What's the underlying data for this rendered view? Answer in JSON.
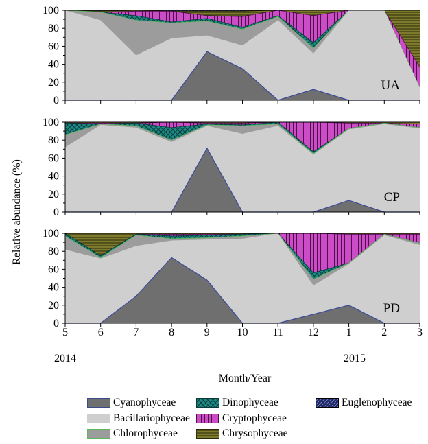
{
  "chart_data": {
    "type": "area",
    "ylabel": "Relative abundance (%)",
    "xlabel": "Month/Year",
    "x_ticks": [
      "5",
      "6",
      "7",
      "8",
      "9",
      "10",
      "11",
      "12",
      "1",
      "2",
      "3"
    ],
    "year_labels": [
      "2014",
      "2015"
    ],
    "ylim": [
      0,
      100
    ],
    "y_ticks": [
      "0",
      "20",
      "40",
      "60",
      "80",
      "100"
    ],
    "stacked": true,
    "series_names": [
      "Cyanophyceae",
      "Bacillariophyceae",
      "Chlorophyceae",
      "Dinophyceae",
      "Cryptophyceae",
      "Chrysophyceae",
      "Euglenophyceae"
    ],
    "series_colors": {
      "Cyanophyceae": "#6f6f6f",
      "Bacillariophyceae": "#cfcfcf",
      "Chlorophyceae": "#9c9c9c",
      "Dinophyceae": "#1d8a86",
      "Cryptophyceae": "#cc4cc8",
      "Chrysophyceae": "#7d7a2e",
      "Euglenophyceae": "#1c2766"
    },
    "panels": [
      {
        "label": "UA",
        "cumulative": {
          "Cyanophyceae": [
            0,
            0,
            0,
            0,
            54,
            35,
            0,
            12,
            0,
            0,
            0
          ],
          "Bacillariophyceae": [
            100,
            89,
            50,
            69,
            72,
            61,
            89,
            52,
            100,
            100,
            14
          ],
          "Chlorophyceae": [
            100,
            98,
            89,
            86,
            88,
            79,
            93,
            58,
            100,
            100,
            14
          ],
          "Dinophyceae": [
            100,
            98,
            94,
            87,
            91,
            81,
            94,
            64,
            100,
            100,
            14
          ],
          "Cryptophyceae": [
            100,
            98,
            99,
            99,
            94,
            93,
            100,
            94,
            100,
            100,
            37
          ],
          "Chrysophyceae": [
            100,
            99,
            100,
            99,
            99,
            99,
            100,
            100,
            100,
            100,
            100
          ],
          "Euglenophyceae": [
            100,
            100,
            100,
            100,
            100,
            100,
            100,
            100,
            100,
            100,
            100
          ]
        }
      },
      {
        "label": "CP",
        "cumulative": {
          "Cyanophyceae": [
            0,
            0,
            0,
            0,
            71,
            0,
            0,
            0,
            13,
            0,
            0
          ],
          "Bacillariophyceae": [
            72,
            97,
            94,
            78,
            96,
            87,
            96,
            64,
            92,
            98,
            93
          ],
          "Chlorophyceae": [
            86,
            98,
            96,
            80,
            97,
            96,
            98,
            65,
            93,
            99,
            94
          ],
          "Dinophyceae": [
            99,
            98,
            99,
            94,
            98,
            97,
            100,
            67,
            93,
            99,
            94
          ],
          "Cryptophyceae": [
            99,
            99,
            99,
            100,
            99,
            99,
            100,
            100,
            99,
            99,
            98
          ],
          "Chrysophyceae": [
            100,
            100,
            100,
            100,
            100,
            100,
            100,
            100,
            100,
            100,
            100
          ],
          "Euglenophyceae": [
            100,
            100,
            100,
            100,
            100,
            100,
            100,
            100,
            100,
            100,
            100
          ]
        }
      },
      {
        "label": "PD",
        "cumulative": {
          "Cyanophyceae": [
            0,
            0,
            30,
            73,
            48,
            0,
            0,
            10,
            20,
            0,
            0
          ],
          "Bacillariophyceae": [
            82,
            72,
            86,
            92,
            93,
            94,
            100,
            42,
            66,
            98,
            87
          ],
          "Chlorophyceae": [
            97,
            73,
            98,
            94,
            95,
            97,
            100,
            49,
            67,
            99,
            89
          ],
          "Dinophyceae": [
            100,
            75,
            99,
            97,
            98,
            99,
            100,
            56,
            67,
            99,
            89
          ],
          "Cryptophyceae": [
            100,
            75,
            99,
            99,
            99,
            99,
            100,
            100,
            99,
            99,
            99
          ],
          "Chrysophyceae": [
            100,
            100,
            100,
            100,
            100,
            100,
            100,
            100,
            100,
            100,
            100
          ],
          "Euglenophyceae": [
            100,
            100,
            100,
            100,
            100,
            100,
            100,
            100,
            100,
            100,
            100
          ]
        }
      }
    ]
  }
}
